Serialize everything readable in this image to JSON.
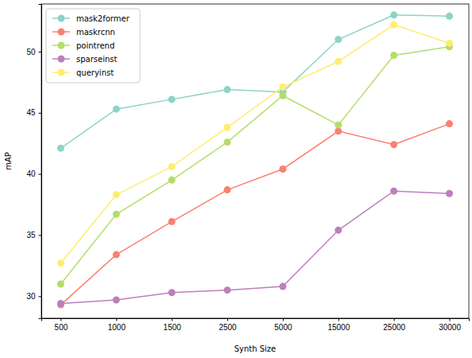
{
  "chart_data": {
    "type": "line",
    "x_label": "Synth Size",
    "y_label": "mAP",
    "categories": [
      "500",
      "1000",
      "1500",
      "2500",
      "5000",
      "15000",
      "25000",
      "30000"
    ],
    "series": [
      {
        "name": "mask2former",
        "color": "#8dd3c7",
        "marker": "circle",
        "values": [
          42.1,
          45.3,
          46.1,
          46.9,
          46.7,
          51.0,
          53.0,
          52.9
        ]
      },
      {
        "name": "maskrcnn",
        "color": "#fb8072",
        "marker": "circle",
        "values": [
          29.3,
          33.4,
          36.1,
          38.7,
          40.4,
          43.5,
          42.4,
          44.1
        ]
      },
      {
        "name": "pointrend",
        "color": "#b3de69",
        "marker": "circle",
        "values": [
          31.0,
          36.7,
          39.5,
          42.6,
          46.4,
          44.0,
          49.7,
          50.4
        ]
      },
      {
        "name": "sparseinst",
        "color": "#bc80bd",
        "marker": "circle",
        "values": [
          29.4,
          29.7,
          30.3,
          30.5,
          30.8,
          35.4,
          38.6,
          38.4
        ]
      },
      {
        "name": "queryinst",
        "color": "#ffed6f",
        "marker": "circle",
        "values": [
          32.7,
          38.3,
          40.6,
          43.8,
          47.1,
          49.2,
          52.2,
          50.7
        ]
      }
    ],
    "ylim": [
      28.2,
      53.9
    ],
    "yticks": [
      30,
      35,
      40,
      45,
      50
    ],
    "grid": false,
    "legend": "upper left"
  }
}
